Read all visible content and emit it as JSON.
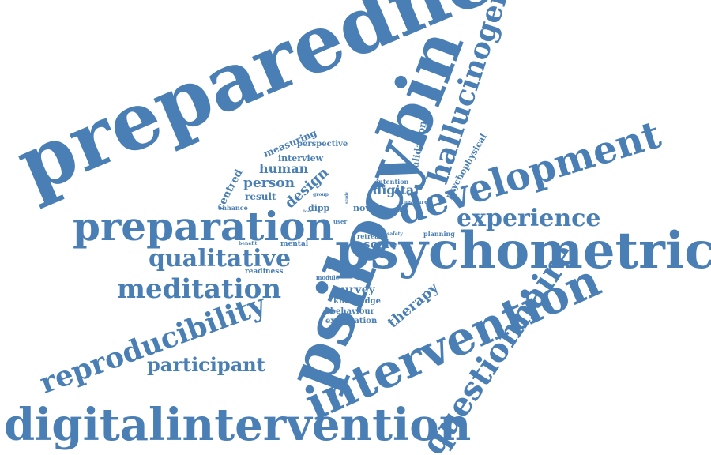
{
  "style": {
    "word_color": "#4a7fb5",
    "background": "#ffffff"
  },
  "words": {
    "preparedness": "preparedness",
    "psilocybin": "psilocybin",
    "psychometric": "psychometric",
    "development": "development",
    "intervention": "intervention",
    "preparation": "preparation",
    "digitalintervention": "digitalintervention",
    "questionnaire": "questionnaire",
    "hallucinogen": "hallucinogen",
    "reproducibility": "reproducibility",
    "experience": "experience",
    "qualitative": "qualitative",
    "meditation": "meditation",
    "participant": "participant",
    "therapy": "therapy",
    "human": "human",
    "person": "person",
    "design": "design",
    "digital": "digital",
    "scale": "scale",
    "survey": "survey",
    "result": "result",
    "interview": "interview",
    "measuring": "measuring",
    "perspective": "perspective",
    "centred": "centred",
    "validation": "validation",
    "psychophysical": "psychophysical",
    "intention": "intention",
    "novel": "novel",
    "dipp": "dipp",
    "enhance": "enhance",
    "knowledge": "knowledge",
    "behaviour": "behaviour",
    "expectation": "expectation",
    "readiness": "readiness",
    "mental": "mental",
    "retreat": "retreat",
    "planning": "planning",
    "measure": "measure",
    "group": "group",
    "user": "user",
    "health": "health",
    "safety": "safety",
    "module": "module",
    "benefit": "benefit",
    "factor": "factor",
    "study": "study",
    "loss": "loss"
  }
}
